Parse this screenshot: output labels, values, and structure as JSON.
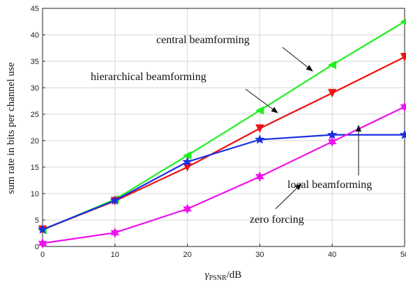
{
  "chart_data": {
    "type": "line",
    "xlabel_main": "γ",
    "xlabel_sub": "PSNR",
    "xlabel_unit": "/dB",
    "ylabel": "sum rate in bits per channel use",
    "x": [
      0,
      10,
      20,
      30,
      40,
      50
    ],
    "xlim": [
      0,
      50
    ],
    "ylim": [
      0,
      45
    ],
    "xticks": [
      0,
      10,
      20,
      30,
      40,
      50
    ],
    "yticks": [
      0,
      5,
      10,
      15,
      20,
      25,
      30,
      35,
      40,
      45
    ],
    "grid": true,
    "series": [
      {
        "name": "central beamforming",
        "color": "#22ee22",
        "marker": "triangle-left",
        "values": [
          3.1,
          8.9,
          17.2,
          25.7,
          34.3,
          42.5
        ]
      },
      {
        "name": "hierarchical beamforming",
        "color": "#ee1111",
        "marker": "triangle-down",
        "values": [
          3.2,
          8.6,
          15.0,
          22.3,
          29.0,
          35.8
        ]
      },
      {
        "name": "local beamforming",
        "color": "#1a2fe0",
        "marker": "star",
        "values": [
          3.2,
          8.7,
          16.0,
          20.2,
          21.1,
          21.1
        ]
      },
      {
        "name": "zero forcing",
        "color": "#ee11ee",
        "marker": "hexagram",
        "values": [
          0.6,
          2.6,
          7.1,
          13.2,
          19.8,
          26.4
        ]
      }
    ],
    "annotations": [
      {
        "text": "central beamforming",
        "series": 0
      },
      {
        "text": "hierarchical beamforming",
        "series": 1
      },
      {
        "text": "local beamforming",
        "series": 2
      },
      {
        "text": "zero forcing",
        "series": 3
      }
    ]
  }
}
